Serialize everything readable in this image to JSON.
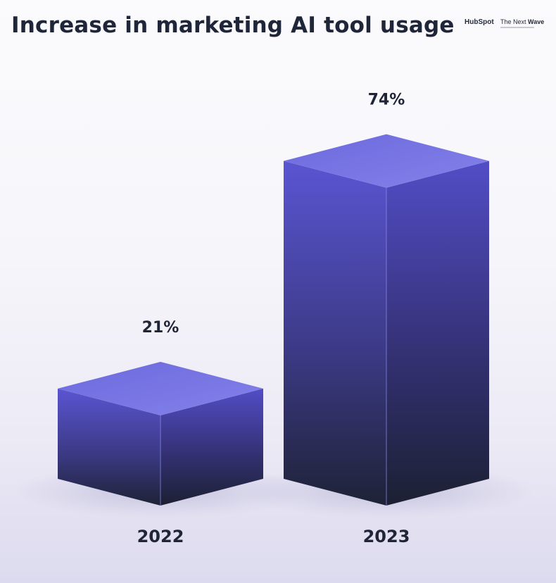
{
  "header": {
    "title": "Increase in marketing AI tool usage",
    "brand_hubspot": "HubSpot",
    "brand_wave_prefix": "The Next",
    "brand_wave_bold": "Wave"
  },
  "colors": {
    "bar_top": "#7a78e6",
    "bar_mid": "#5651c9",
    "bar_bottom": "#1e2236",
    "hubspot_accent": "#ff5c35"
  },
  "chart_data": {
    "type": "bar",
    "style": "3d-box",
    "title": "Increase in marketing AI tool usage",
    "categories": [
      "2022",
      "2023"
    ],
    "values": [
      21,
      74
    ],
    "value_labels": [
      "21%",
      "74%"
    ],
    "unit": "%",
    "ylim": [
      0,
      100
    ],
    "grid": false,
    "legend": "none"
  }
}
